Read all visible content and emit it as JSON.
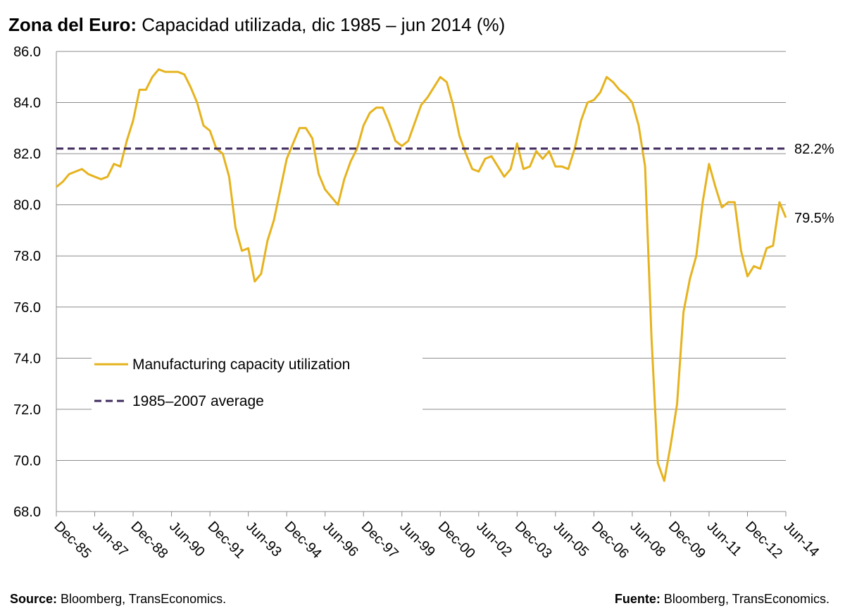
{
  "title": {
    "bold": "Zona del Euro:",
    "rest": " Capacidad utilizada, dic 1985 – jun 2014 (%)"
  },
  "footer": {
    "left_bold": "Source:",
    "left_text": " Bloomberg, TransEconomics.",
    "right_bold": "Fuente:",
    "right_text": " Bloomberg, TransEconomics."
  },
  "chart_data": {
    "type": "line",
    "title": "Zona del Euro: Capacidad utilizada, dic 1985 – jun 2014 (%)",
    "xlabel": "",
    "ylabel": "",
    "ylim": [
      68,
      86
    ],
    "yticks": [
      "68.0",
      "70.0",
      "72.0",
      "74.0",
      "76.0",
      "78.0",
      "80.0",
      "82.0",
      "84.0",
      "86.0"
    ],
    "x_start": 1985.917,
    "x_end": 2014.417,
    "xticks": [
      {
        "label": "Dec-85",
        "x": 1985.917
      },
      {
        "label": "Jun-87",
        "x": 1987.417
      },
      {
        "label": "Dec-88",
        "x": 1988.917
      },
      {
        "label": "Jun-90",
        "x": 1990.417
      },
      {
        "label": "Dec-91",
        "x": 1991.917
      },
      {
        "label": "Jun-93",
        "x": 1993.417
      },
      {
        "label": "Dec-94",
        "x": 1994.917
      },
      {
        "label": "Jun-96",
        "x": 1996.417
      },
      {
        "label": "Dec-97",
        "x": 1997.917
      },
      {
        "label": "Jun-99",
        "x": 1999.417
      },
      {
        "label": "Dec-00",
        "x": 2000.917
      },
      {
        "label": "Jun-02",
        "x": 2002.417
      },
      {
        "label": "Dec-03",
        "x": 2003.917
      },
      {
        "label": "Jun-05",
        "x": 2005.417
      },
      {
        "label": "Dec-06",
        "x": 2006.917
      },
      {
        "label": "Jun-08",
        "x": 2008.417
      },
      {
        "label": "Dec-09",
        "x": 2009.917
      },
      {
        "label": "Jun-11",
        "x": 2011.417
      },
      {
        "label": "Dec-12",
        "x": 2012.917
      },
      {
        "label": "Jun-14",
        "x": 2014.417
      }
    ],
    "grid": true,
    "legend_position": "lower-left",
    "series": [
      {
        "name": "Manufacturing capacity utilization",
        "color": "#E6B31E",
        "style": "solid",
        "end_label": "79.5%",
        "points": [
          [
            1985.917,
            80.7
          ],
          [
            1986.167,
            80.9
          ],
          [
            1986.417,
            81.2
          ],
          [
            1986.667,
            81.3
          ],
          [
            1986.917,
            81.4
          ],
          [
            1987.167,
            81.2
          ],
          [
            1987.417,
            81.1
          ],
          [
            1987.667,
            81.0
          ],
          [
            1987.917,
            81.1
          ],
          [
            1988.167,
            81.6
          ],
          [
            1988.417,
            81.5
          ],
          [
            1988.667,
            82.5
          ],
          [
            1988.917,
            83.3
          ],
          [
            1989.167,
            84.5
          ],
          [
            1989.417,
            84.5
          ],
          [
            1989.667,
            85.0
          ],
          [
            1989.917,
            85.3
          ],
          [
            1990.167,
            85.2
          ],
          [
            1990.417,
            85.2
          ],
          [
            1990.667,
            85.2
          ],
          [
            1990.917,
            85.1
          ],
          [
            1991.167,
            84.6
          ],
          [
            1991.417,
            84.0
          ],
          [
            1991.667,
            83.1
          ],
          [
            1991.917,
            82.9
          ],
          [
            1992.167,
            82.2
          ],
          [
            1992.417,
            82.0
          ],
          [
            1992.667,
            81.1
          ],
          [
            1992.917,
            79.1
          ],
          [
            1993.167,
            78.2
          ],
          [
            1993.417,
            78.3
          ],
          [
            1993.667,
            77.0
          ],
          [
            1993.917,
            77.3
          ],
          [
            1994.167,
            78.6
          ],
          [
            1994.417,
            79.4
          ],
          [
            1994.667,
            80.6
          ],
          [
            1994.917,
            81.8
          ],
          [
            1995.167,
            82.4
          ],
          [
            1995.417,
            83.0
          ],
          [
            1995.667,
            83.0
          ],
          [
            1995.917,
            82.6
          ],
          [
            1996.167,
            81.2
          ],
          [
            1996.417,
            80.6
          ],
          [
            1996.667,
            80.3
          ],
          [
            1996.917,
            80.0
          ],
          [
            1997.167,
            81.0
          ],
          [
            1997.417,
            81.7
          ],
          [
            1997.667,
            82.2
          ],
          [
            1997.917,
            83.1
          ],
          [
            1998.167,
            83.6
          ],
          [
            1998.417,
            83.8
          ],
          [
            1998.667,
            83.8
          ],
          [
            1998.917,
            83.2
          ],
          [
            1999.167,
            82.5
          ],
          [
            1999.417,
            82.3
          ],
          [
            1999.667,
            82.5
          ],
          [
            1999.917,
            83.2
          ],
          [
            2000.167,
            83.9
          ],
          [
            2000.417,
            84.2
          ],
          [
            2000.667,
            84.6
          ],
          [
            2000.917,
            85.0
          ],
          [
            2001.167,
            84.8
          ],
          [
            2001.417,
            83.9
          ],
          [
            2001.667,
            82.7
          ],
          [
            2001.917,
            82.0
          ],
          [
            2002.167,
            81.4
          ],
          [
            2002.417,
            81.3
          ],
          [
            2002.667,
            81.8
          ],
          [
            2002.917,
            81.9
          ],
          [
            2003.167,
            81.5
          ],
          [
            2003.417,
            81.1
          ],
          [
            2003.667,
            81.4
          ],
          [
            2003.917,
            82.4
          ],
          [
            2004.167,
            81.4
          ],
          [
            2004.417,
            81.5
          ],
          [
            2004.667,
            82.1
          ],
          [
            2004.917,
            81.8
          ],
          [
            2005.167,
            82.1
          ],
          [
            2005.417,
            81.5
          ],
          [
            2005.667,
            81.5
          ],
          [
            2005.917,
            81.4
          ],
          [
            2006.167,
            82.2
          ],
          [
            2006.417,
            83.3
          ],
          [
            2006.667,
            84.0
          ],
          [
            2006.917,
            84.1
          ],
          [
            2007.167,
            84.4
          ],
          [
            2007.417,
            85.0
          ],
          [
            2007.667,
            84.8
          ],
          [
            2007.917,
            84.5
          ],
          [
            2008.167,
            84.3
          ],
          [
            2008.417,
            84.0
          ],
          [
            2008.667,
            83.1
          ],
          [
            2008.917,
            81.5
          ],
          [
            2009.167,
            74.8
          ],
          [
            2009.417,
            69.9
          ],
          [
            2009.667,
            69.2
          ],
          [
            2009.917,
            70.6
          ],
          [
            2010.167,
            72.2
          ],
          [
            2010.417,
            75.8
          ],
          [
            2010.667,
            77.1
          ],
          [
            2010.917,
            78.0
          ],
          [
            2011.167,
            80.1
          ],
          [
            2011.417,
            81.6
          ],
          [
            2011.667,
            80.7
          ],
          [
            2011.917,
            79.9
          ],
          [
            2012.167,
            80.1
          ],
          [
            2012.417,
            80.1
          ],
          [
            2012.667,
            78.2
          ],
          [
            2012.917,
            77.2
          ],
          [
            2013.167,
            77.6
          ],
          [
            2013.417,
            77.5
          ],
          [
            2013.667,
            78.3
          ],
          [
            2013.917,
            78.4
          ],
          [
            2014.167,
            80.1
          ],
          [
            2014.417,
            79.5
          ]
        ]
      },
      {
        "name": "1985–2007 average",
        "color": "#3F2A5C",
        "style": "dashed",
        "end_label": "82.2%",
        "points": [
          [
            1985.917,
            82.2
          ],
          [
            2014.417,
            82.2
          ]
        ]
      }
    ]
  }
}
